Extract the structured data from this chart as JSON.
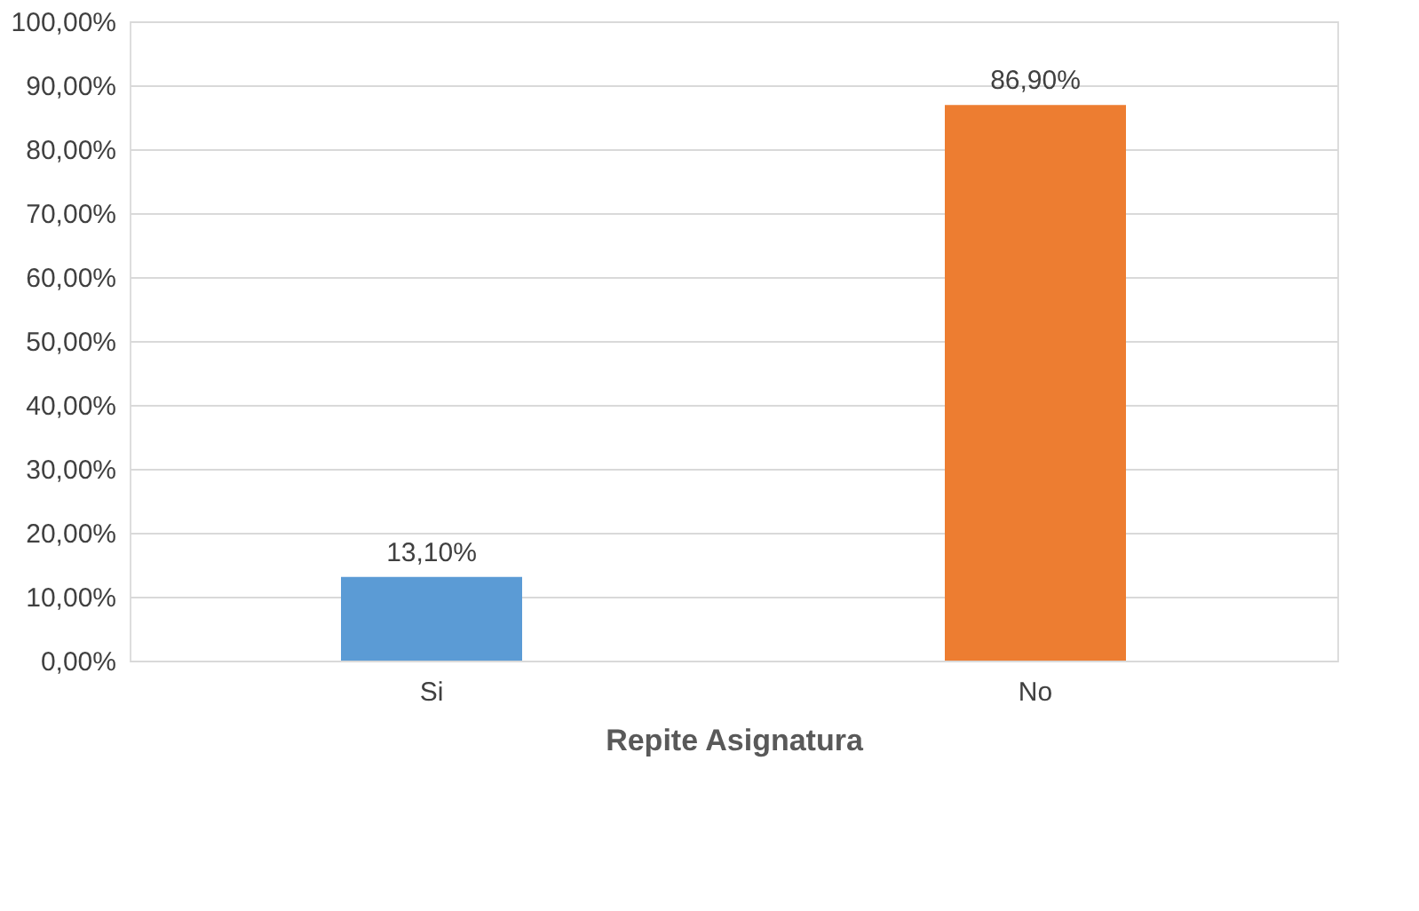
{
  "chart_data": {
    "type": "bar",
    "xlabel": "Repite Asignatura",
    "categories": [
      "Si",
      "No"
    ],
    "values": [
      13.1,
      86.9
    ],
    "colors": [
      "#5b9bd5",
      "#ed7d31"
    ],
    "value_labels": [
      "13,10%",
      "86,90%"
    ],
    "ylim": [
      0,
      100
    ],
    "yticks": [
      {
        "value": 0,
        "label": "0,00%"
      },
      {
        "value": 10,
        "label": "10,00%"
      },
      {
        "value": 20,
        "label": "20,00%"
      },
      {
        "value": 30,
        "label": "30,00%"
      },
      {
        "value": 40,
        "label": "40,00%"
      },
      {
        "value": 50,
        "label": "50,00%"
      },
      {
        "value": 60,
        "label": "60,00%"
      },
      {
        "value": 70,
        "label": "70,00%"
      },
      {
        "value": 80,
        "label": "80,00%"
      },
      {
        "value": 90,
        "label": "90,00%"
      },
      {
        "value": 100,
        "label": "100,00%"
      }
    ],
    "grid": "y"
  }
}
